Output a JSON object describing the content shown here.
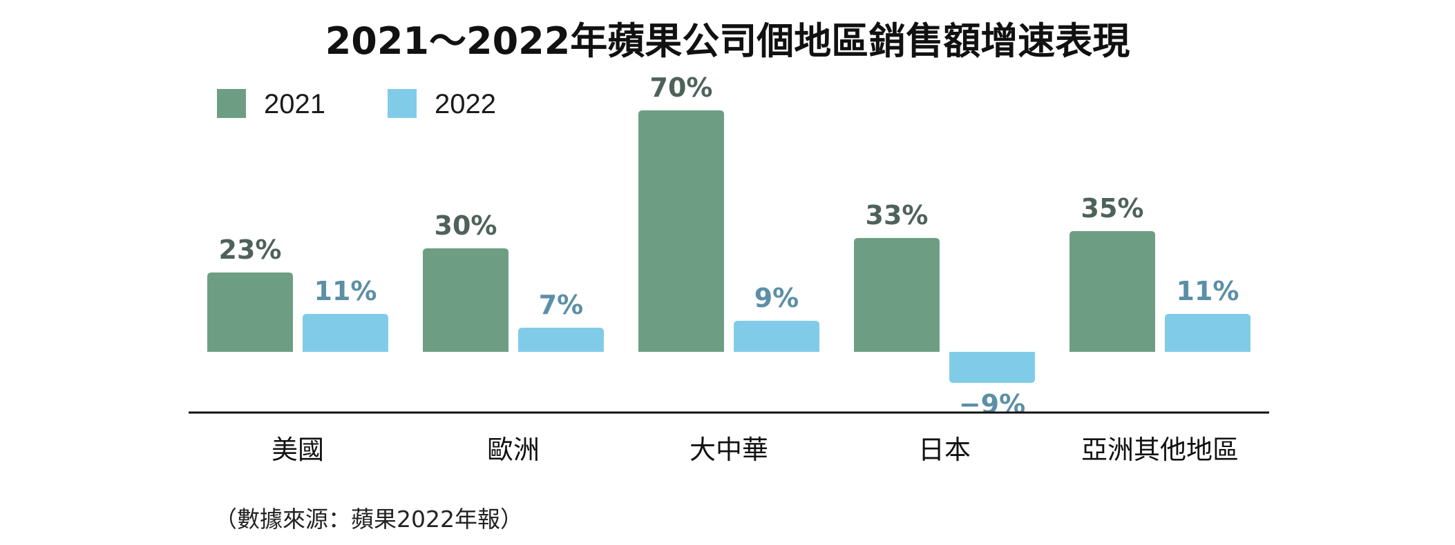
{
  "chart_data": {
    "type": "bar",
    "title": "2021～2022年蘋果公司個地區銷售額增速表現",
    "categories": [
      "美國",
      "歐洲",
      "大中華",
      "日本",
      "亞洲其他地區"
    ],
    "series": [
      {
        "name": "2021",
        "values": [
          23,
          30,
          70,
          33,
          35
        ],
        "labels": [
          "23%",
          "30%",
          "70%",
          "33%",
          "35%"
        ],
        "color": "#6d9e83",
        "label_color": "#4e6259"
      },
      {
        "name": "2022",
        "values": [
          11,
          7,
          9,
          -9,
          11
        ],
        "labels": [
          "11%",
          "7%",
          "9%",
          "−9%",
          "11%"
        ],
        "color": "#80cce8",
        "label_color": "#5b8fa6"
      }
    ],
    "xlabel": "",
    "ylabel": "",
    "ylim": [
      -9,
      70
    ],
    "unit": "%",
    "grid": false,
    "legend_position": "top-left",
    "source_note": "（數據來源：蘋果2022年報）"
  }
}
